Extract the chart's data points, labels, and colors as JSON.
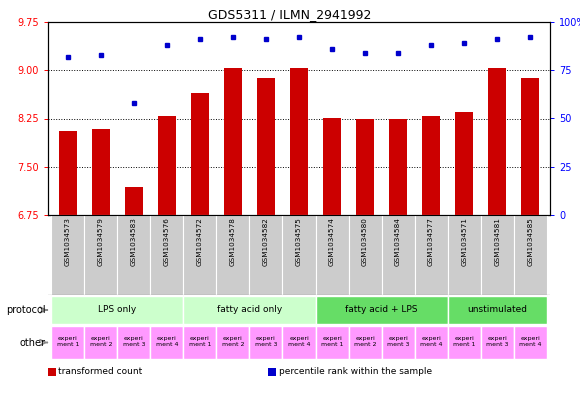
{
  "title": "GDS5311 / ILMN_2941992",
  "samples": [
    "GSM1034573",
    "GSM1034579",
    "GSM1034583",
    "GSM1034576",
    "GSM1034572",
    "GSM1034578",
    "GSM1034582",
    "GSM1034575",
    "GSM1034574",
    "GSM1034580",
    "GSM1034584",
    "GSM1034577",
    "GSM1034571",
    "GSM1034581",
    "GSM1034585"
  ],
  "bar_values": [
    8.06,
    8.09,
    7.18,
    8.29,
    8.65,
    9.04,
    8.88,
    9.04,
    8.26,
    8.24,
    8.24,
    8.29,
    8.35,
    9.04,
    8.88
  ],
  "dot_values": [
    82,
    83,
    58,
    88,
    91,
    92,
    91,
    92,
    86,
    84,
    84,
    88,
    89,
    91,
    92
  ],
  "ylim_left": [
    6.75,
    9.75
  ],
  "ylim_right": [
    0,
    100
  ],
  "yticks_left": [
    6.75,
    7.5,
    8.25,
    9.0,
    9.75
  ],
  "yticks_right": [
    0,
    25,
    50,
    75,
    100
  ],
  "bar_color": "#cc0000",
  "dot_color": "#0000cc",
  "grid_lines": [
    7.5,
    8.25,
    9.0,
    9.75
  ],
  "protocol_groups": [
    {
      "label": "LPS only",
      "start": 0,
      "end": 4,
      "color": "#ccffcc"
    },
    {
      "label": "fatty acid only",
      "start": 4,
      "end": 8,
      "color": "#ccffcc"
    },
    {
      "label": "fatty acid + LPS",
      "start": 8,
      "end": 12,
      "color": "#66dd66"
    },
    {
      "label": "unstimulated",
      "start": 12,
      "end": 15,
      "color": "#66dd66"
    }
  ],
  "other_items": [
    {
      "label": "experi\nment 1",
      "idx": 0,
      "color": "#ff99ff"
    },
    {
      "label": "experi\nment 2",
      "idx": 1,
      "color": "#ff99ff"
    },
    {
      "label": "experi\nment 3",
      "idx": 2,
      "color": "#ff99ff"
    },
    {
      "label": "experi\nment 4",
      "idx": 3,
      "color": "#ff99ff"
    },
    {
      "label": "experi\nment 1",
      "idx": 4,
      "color": "#ff99ff"
    },
    {
      "label": "experi\nment 2",
      "idx": 5,
      "color": "#ff99ff"
    },
    {
      "label": "experi\nment 3",
      "idx": 6,
      "color": "#ff99ff"
    },
    {
      "label": "experi\nment 4",
      "idx": 7,
      "color": "#ff99ff"
    },
    {
      "label": "experi\nment 1",
      "idx": 8,
      "color": "#ff99ff"
    },
    {
      "label": "experi\nment 2",
      "idx": 9,
      "color": "#ff99ff"
    },
    {
      "label": "experi\nment 3",
      "idx": 10,
      "color": "#ff99ff"
    },
    {
      "label": "experi\nment 4",
      "idx": 11,
      "color": "#ff99ff"
    },
    {
      "label": "experi\nment 1",
      "idx": 12,
      "color": "#ff99ff"
    },
    {
      "label": "experi\nment 3",
      "idx": 13,
      "color": "#ff99ff"
    },
    {
      "label": "experi\nment 4",
      "idx": 14,
      "color": "#ff99ff"
    }
  ],
  "legend_items": [
    {
      "color": "#cc0000",
      "label": "transformed count"
    },
    {
      "color": "#0000cc",
      "label": "percentile rank within the sample"
    }
  ],
  "sample_bg_color": "#cccccc",
  "sample_bg_alt": "#dddddd",
  "left_label_color": "#666666"
}
